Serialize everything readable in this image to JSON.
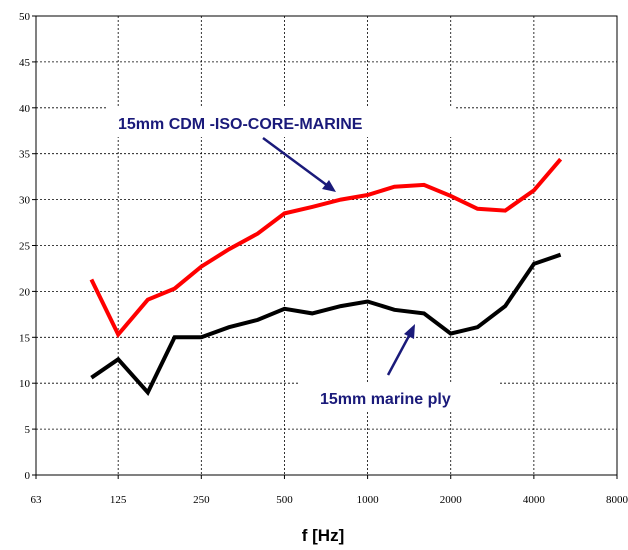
{
  "chart_data": {
    "type": "line",
    "xscale": "log2",
    "xlabel": "f [Hz]",
    "ylabel": "",
    "xlim": [
      63,
      8000
    ],
    "ylim": [
      0,
      50
    ],
    "x_ticks": [
      "63",
      "125",
      "250",
      "500",
      "1000",
      "2000",
      "4000",
      "8000"
    ],
    "y_ticks": [
      "0",
      "5",
      "10",
      "15",
      "20",
      "25",
      "30",
      "35",
      "40",
      "45",
      "50"
    ],
    "grid": true,
    "x": [
      100,
      125,
      160,
      200,
      250,
      315,
      400,
      500,
      630,
      800,
      1000,
      1250,
      1600,
      2000,
      2500,
      3150,
      4000,
      5000
    ],
    "series": [
      {
        "color": "#ff0000",
        "values": [
          21.3,
          15.3,
          19.1,
          20.3,
          22.7,
          24.6,
          26.3,
          28.5,
          29.2,
          30.0,
          30.5,
          31.4,
          31.6,
          30.4,
          29.0,
          28.8,
          31.0,
          34.4
        ]
      },
      {
        "color": "#000000",
        "values": [
          10.6,
          12.6,
          9.0,
          15.0,
          15.0,
          16.1,
          16.9,
          18.1,
          17.6,
          18.4,
          18.9,
          18.0,
          17.6,
          15.4,
          16.1,
          18.4,
          23.0,
          24.0
        ]
      }
    ],
    "annotations": [
      {
        "text": "15mm CDM -ISO-CORE-MARINE",
        "color": "#1a1a7a"
      },
      {
        "text": "15mm marine ply",
        "color": "#1a1a7a"
      }
    ]
  }
}
